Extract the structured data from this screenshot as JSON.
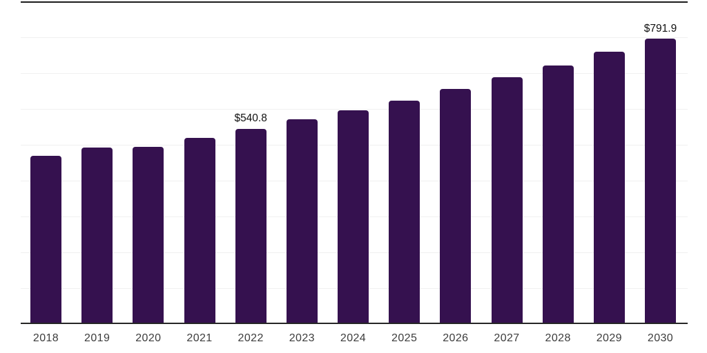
{
  "chart_data": {
    "type": "bar",
    "title": "",
    "categories": [
      "2018",
      "2019",
      "2020",
      "2021",
      "2022",
      "2023",
      "2024",
      "2025",
      "2026",
      "2027",
      "2028",
      "2029",
      "2030"
    ],
    "values": [
      466.0,
      489.0,
      491.0,
      515.0,
      540.8,
      567.5,
      592.5,
      619.5,
      652.0,
      684.5,
      717.0,
      755.5,
      791.9
    ],
    "data_labels": [
      "",
      "",
      "",
      "",
      "$540.8",
      "",
      "",
      "",
      "",
      "",
      "",
      "",
      "$791.9"
    ],
    "xlabel": "",
    "ylabel": "",
    "ylim": [
      0,
      900
    ],
    "gridline_step": 100,
    "grid": "horizontal-light",
    "legend_position": "none",
    "colors": {
      "bar": "#35114F",
      "top_border": "#1b1b1b",
      "baseline": "#262626",
      "gridline": "#f0f0f0",
      "value_label_text": "#111111",
      "tick_label_text": "#3c3c3c",
      "background": "#ffffff"
    }
  }
}
